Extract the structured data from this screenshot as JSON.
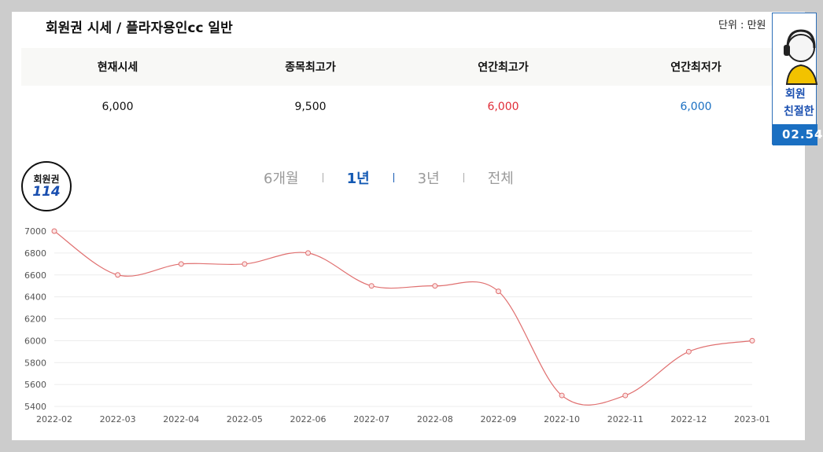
{
  "header": {
    "title": "회원권 시세 / 플라자용인cc 일반",
    "unit": "단위 : 만원"
  },
  "stats": {
    "headers": [
      "현재시세",
      "종목최고가",
      "연간최고가",
      "연간최저가"
    ],
    "values": [
      "6,000",
      "9,500",
      "6,000",
      "6,000"
    ],
    "colors": {
      "high": "#e02d38",
      "low": "#1a6fc2"
    }
  },
  "badge": {
    "top": "회원권",
    "number": "114"
  },
  "periods": [
    "6개월",
    "1년",
    "3년",
    "전체"
  ],
  "active_period": "1년",
  "ad": {
    "line1": "회원",
    "line2": "친절한",
    "phone": "02.54"
  },
  "chart_data": {
    "type": "line",
    "categories": [
      "2022-02",
      "2022-03",
      "2022-04",
      "2022-05",
      "2022-06",
      "2022-07",
      "2022-08",
      "2022-09",
      "2022-10",
      "2022-11",
      "2022-12",
      "2023-01"
    ],
    "series": [
      {
        "values": [
          7000,
          6600,
          6700,
          6700,
          6800,
          6500,
          6500,
          6450,
          5500,
          5500,
          5900,
          6000
        ],
        "color": "#e07070"
      }
    ],
    "yticks": [
      5400,
      5600,
      5800,
      6000,
      6200,
      6400,
      6600,
      6800,
      7000
    ],
    "ylim": [
      5400,
      7000
    ],
    "grid": true
  }
}
